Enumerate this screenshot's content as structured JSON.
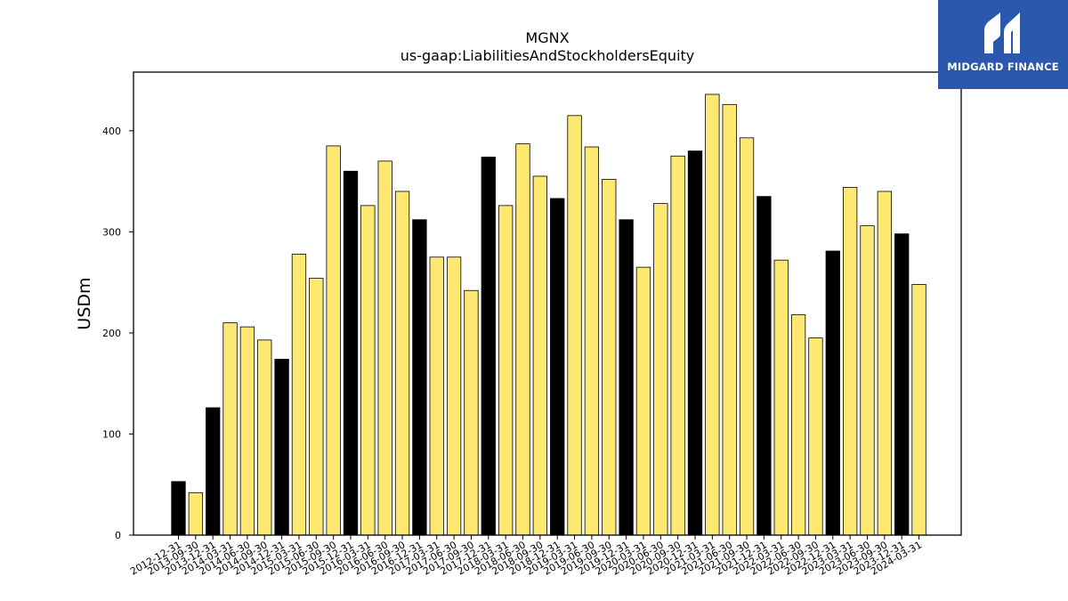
{
  "brand": {
    "name": "MIDGARD FINANCE",
    "logo_icon": "midgard-m-logo-icon",
    "background": "#2b58ad"
  },
  "colors": {
    "highlight_bar": "#000000",
    "regular_bar": "#fde972",
    "bar_edge": "#000000"
  },
  "chart_data": {
    "type": "bar",
    "title": "MGNX",
    "subtitle": "us-gaap:LiabilitiesAndStockholdersEquity",
    "xlabel": "",
    "ylabel": "USDm",
    "ylim": [
      0,
      458
    ],
    "yticks": [
      0,
      100,
      200,
      300,
      400
    ],
    "grid": false,
    "categories": [
      "2012-12-31",
      "2013-09-30",
      "2013-12-31",
      "2014-03-31",
      "2014-06-30",
      "2014-09-30",
      "2014-12-31",
      "2015-03-31",
      "2015-06-30",
      "2015-09-30",
      "2015-12-31",
      "2016-03-31",
      "2016-06-30",
      "2016-09-30",
      "2016-12-31",
      "2017-03-31",
      "2017-06-30",
      "2017-09-30",
      "2017-12-31",
      "2018-03-31",
      "2018-06-30",
      "2018-09-30",
      "2018-12-31",
      "2019-03-31",
      "2019-06-30",
      "2019-09-30",
      "2019-12-31",
      "2020-03-31",
      "2020-06-30",
      "2020-09-30",
      "2020-12-31",
      "2021-03-31",
      "2021-06-30",
      "2021-09-30",
      "2021-12-31",
      "2022-03-31",
      "2022-06-30",
      "2022-09-30",
      "2022-12-31",
      "2023-03-31",
      "2023-06-30",
      "2023-09-30",
      "2023-12-31",
      "2024-03-31"
    ],
    "values": [
      53,
      42,
      126,
      210,
      206,
      193,
      174,
      278,
      254,
      385,
      360,
      326,
      370,
      340,
      312,
      275,
      275,
      242,
      374,
      326,
      387,
      355,
      333,
      415,
      384,
      352,
      312,
      265,
      328,
      375,
      380,
      436,
      426,
      393,
      335,
      272,
      218,
      195,
      281,
      344,
      306,
      340,
      298,
      248
    ],
    "highlight": [
      true,
      false,
      true,
      false,
      false,
      false,
      true,
      false,
      false,
      false,
      true,
      false,
      false,
      false,
      true,
      false,
      false,
      false,
      true,
      false,
      false,
      false,
      true,
      false,
      false,
      false,
      true,
      false,
      false,
      false,
      true,
      false,
      false,
      false,
      true,
      false,
      false,
      false,
      true,
      false,
      false,
      false,
      true,
      false
    ]
  }
}
